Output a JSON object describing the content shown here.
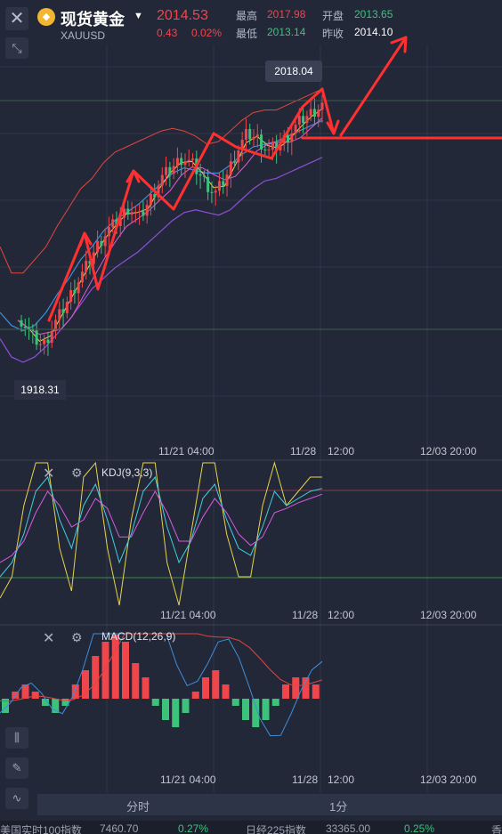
{
  "header": {
    "title": "现货黄金",
    "symbol": "XAUUSD",
    "price": "2014.53",
    "change": "0.43",
    "change_pct": "0.02%",
    "high_label": "最高",
    "high_value": "2017.98",
    "low_label": "最低",
    "low_value": "2013.14",
    "open_label": "开盘",
    "open_value": "2013.65",
    "prev_label": "昨收",
    "prev_value": "2014.10"
  },
  "main_chart": {
    "high_tip": "2018.04",
    "low_tip": "1918.31",
    "time_labels": [
      "11/21 04:00",
      "11/28",
      "12:00",
      "12/03 20:00"
    ]
  },
  "kdj": {
    "label": "KDJ(9,3,3)",
    "time_labels": [
      "11/21 04:00",
      "11/28",
      "12:00",
      "12/03 20:00"
    ]
  },
  "macd": {
    "label": "MACD(12,26,9)",
    "time_labels": [
      "11/21 04:00",
      "11/28",
      "12:00",
      "12/03 20:00"
    ]
  },
  "tabs": [
    "分时",
    "1分"
  ],
  "ticker": [
    "美国实时100指数",
    "7460.70",
    "0.27%",
    "日经225指数",
    "33365.00",
    "0.25%",
    "香"
  ],
  "icons": {
    "close": "close-icon",
    "shrink": "shrink-icon",
    "candle": "candlestick-icon",
    "draw": "pencil-icon",
    "indicator": "indicator-icon",
    "gear": "gear-icon"
  },
  "colors": {
    "up": "#f0454b",
    "down": "#3cc27a",
    "background": "#232838",
    "boll_upper": "#e0463f",
    "boll_mid": "#3f8ddb",
    "boll_lower": "#8e4fd8",
    "ma_yellow": "#e6d34a",
    "annotation": "#ff3030"
  },
  "chart_data": {
    "type": "candlestick",
    "title": "现货黄金 XAUUSD",
    "x_labels": [
      "11/21 04:00",
      "11/28",
      "12:00",
      "12/03 20:00"
    ],
    "y_range": [
      1915,
      2020
    ],
    "max_marker": 2018.04,
    "min_marker": 1918.31,
    "series": [
      {
        "name": "close",
        "values": [
          1932,
          1926,
          1922,
          1930,
          1937,
          1945,
          1952,
          1960,
          1966,
          1970,
          1975,
          1971,
          1978,
          1986,
          1990,
          1994,
          1991,
          1985,
          1980,
          1986,
          1996,
          2003,
          2001,
          1996,
          1999,
          2003,
          2008,
          2011,
          2014
        ]
      },
      {
        "name": "boll_upper",
        "values": [
          1960,
          1950,
          1950,
          1955,
          1960,
          1968,
          1975,
          1982,
          1986,
          1992,
          1996,
          1998,
          2000,
          2002,
          2004,
          2005,
          2004,
          2002,
          1999,
          2000,
          2004,
          2008,
          2011,
          2012,
          2012,
          2014,
          2016,
          2018,
          2020
        ]
      },
      {
        "name": "boll_mid",
        "values": [
          1935,
          1930,
          1928,
          1930,
          1935,
          1942,
          1948,
          1955,
          1960,
          1966,
          1970,
          1973,
          1976,
          1980,
          1984,
          1988,
          1990,
          1989,
          1988,
          1988,
          1991,
          1995,
          1998,
          1999,
          2000,
          2002,
          2004,
          2006,
          2008
        ]
      },
      {
        "name": "boll_lower",
        "values": [
          1925,
          1918,
          1916,
          1918,
          1922,
          1927,
          1932,
          1938,
          1944,
          1948,
          1952,
          1955,
          1958,
          1962,
          1966,
          1970,
          1973,
          1974,
          1973,
          1972,
          1974,
          1978,
          1982,
          1985,
          1986,
          1988,
          1990,
          1992,
          1994
        ]
      }
    ],
    "kdj": {
      "K": [
        20,
        30,
        50,
        80,
        90,
        60,
        40,
        70,
        85,
        60,
        30,
        50,
        80,
        90,
        55,
        30,
        45,
        75,
        85,
        60,
        40,
        35,
        55,
        80,
        70,
        75,
        80,
        82
      ],
      "D": [
        30,
        35,
        45,
        65,
        80,
        70,
        55,
        60,
        75,
        68,
        48,
        48,
        65,
        80,
        65,
        45,
        45,
        62,
        75,
        65,
        50,
        42,
        48,
        65,
        68,
        72,
        75,
        78
      ],
      "J": [
        5,
        20,
        70,
        100,
        100,
        40,
        10,
        90,
        100,
        40,
        0,
        60,
        100,
        100,
        30,
        0,
        50,
        100,
        100,
        50,
        20,
        20,
        70,
        100,
        70,
        80,
        90,
        90
      ]
    },
    "macd": {
      "hist": [
        -2,
        1,
        2,
        1,
        -1,
        -2,
        -1,
        2,
        4,
        6,
        8,
        9,
        8,
        5,
        3,
        -1,
        -3,
        -4,
        -2,
        1,
        3,
        4,
        2,
        -1,
        -3,
        -4,
        -3,
        -1,
        2,
        3,
        3,
        2
      ]
    }
  }
}
